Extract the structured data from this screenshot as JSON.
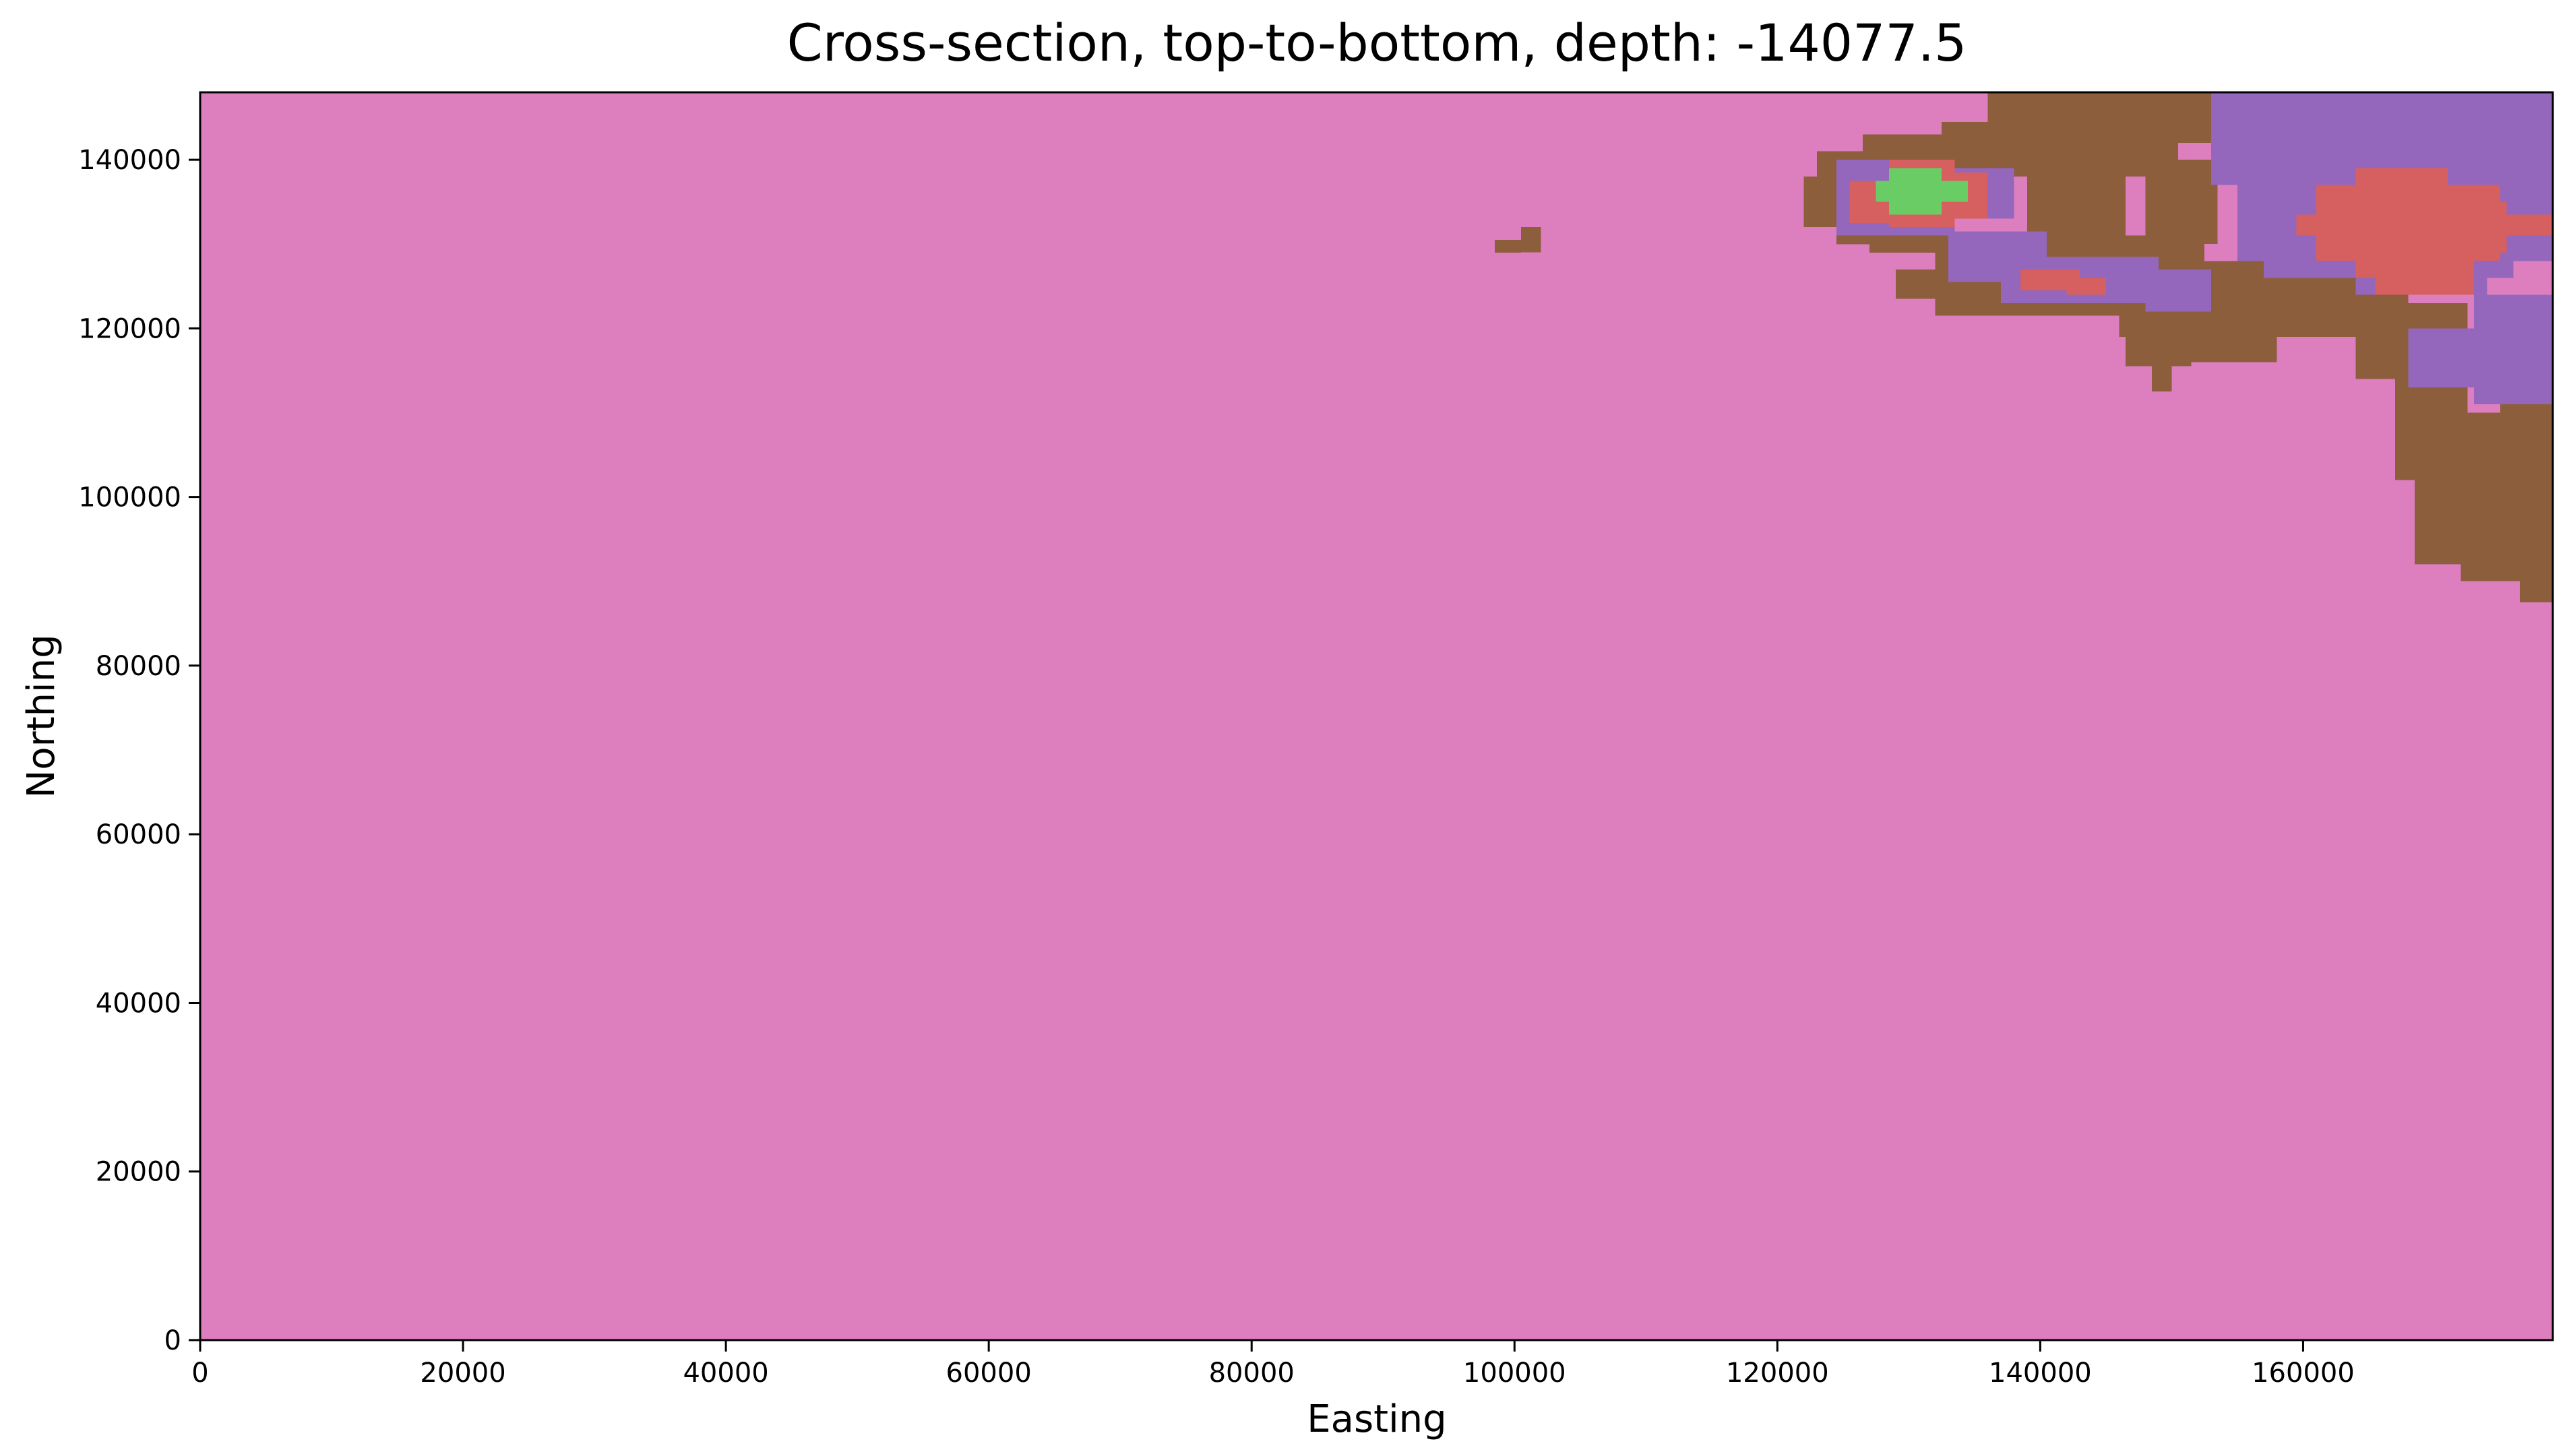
{
  "chart_data": {
    "type": "heatmap",
    "title": "Cross-section, top-to-bottom, depth: -14077.5",
    "xlabel": "Easting",
    "ylabel": "Northing",
    "xlim": [
      0,
      179000
    ],
    "ylim": [
      0,
      148000
    ],
    "grid": false,
    "legend": "none",
    "x_ticks": [
      0,
      20000,
      40000,
      60000,
      80000,
      100000,
      120000,
      140000,
      160000
    ],
    "y_ticks": [
      0,
      20000,
      40000,
      60000,
      80000,
      100000,
      120000,
      140000
    ],
    "x_tick_labels": [
      "0",
      "20000",
      "40000",
      "60000",
      "80000",
      "100000",
      "120000",
      "140000",
      "160000"
    ],
    "y_tick_labels": [
      "0",
      "20000",
      "40000",
      "60000",
      "80000",
      "100000",
      "120000",
      "140000"
    ],
    "background_color": "#dd7fbf",
    "units": [
      {
        "color": "#8c5e3c",
        "regions": [
          [
            98500,
            129000,
            100500,
            130500
          ],
          [
            100500,
            129000,
            102000,
            132000
          ],
          [
            122000,
            132000,
            124500,
            138000
          ],
          [
            124500,
            130000,
            127000,
            134000
          ],
          [
            123000,
            137000,
            126500,
            141000
          ],
          [
            126500,
            140000,
            136000,
            143000
          ],
          [
            134000,
            134000,
            136500,
            140000
          ],
          [
            127000,
            129000,
            139500,
            131500
          ],
          [
            132000,
            121500,
            138000,
            129000
          ],
          [
            129000,
            123500,
            132000,
            127000
          ],
          [
            132500,
            138000,
            139000,
            144500
          ],
          [
            136000,
            142000,
            153500,
            148000
          ],
          [
            139000,
            131000,
            146500,
            142500
          ],
          [
            144000,
            138000,
            150500,
            146000
          ],
          [
            148000,
            130000,
            153500,
            140000
          ],
          [
            137000,
            127000,
            152500,
            131000
          ],
          [
            136000,
            121500,
            148000,
            125000
          ],
          [
            146000,
            119000,
            153500,
            127000
          ],
          [
            146500,
            115500,
            151500,
            121000
          ],
          [
            148500,
            112500,
            150000,
            117000
          ],
          [
            150000,
            116000,
            158000,
            121000
          ],
          [
            152000,
            120000,
            166000,
            128000
          ],
          [
            158000,
            119000,
            164000,
            124000
          ],
          [
            164000,
            114000,
            168000,
            124000
          ],
          [
            167000,
            108000,
            172500,
            123000
          ],
          [
            170000,
            116000,
            175500,
            120000
          ],
          [
            175000,
            100000,
            179000,
            116000
          ],
          [
            167000,
            102000,
            170000,
            108000
          ],
          [
            168500,
            92000,
            175000,
            110000
          ],
          [
            172000,
            90000,
            177500,
            108000
          ],
          [
            176500,
            87500,
            179000,
            104000
          ]
        ]
      },
      {
        "color": "#9467bd",
        "regions": [
          [
            124500,
            131000,
            133500,
            140000
          ],
          [
            125000,
            133000,
            138000,
            139000
          ],
          [
            133000,
            125500,
            140500,
            131500
          ],
          [
            137000,
            123000,
            149000,
            128500
          ],
          [
            140000,
            123000,
            151500,
            126000
          ],
          [
            148000,
            122000,
            153000,
            127000
          ],
          [
            153000,
            137000,
            179000,
            148000
          ],
          [
            155000,
            128000,
            179000,
            144000
          ],
          [
            157000,
            126000,
            176000,
            130000
          ],
          [
            164000,
            124000,
            174000,
            128000
          ],
          [
            168000,
            113000,
            179000,
            120000
          ],
          [
            173000,
            111000,
            179000,
            124000
          ]
        ]
      },
      {
        "color": "#d65f5f",
        "regions": [
          [
            125500,
            132500,
            128500,
            137500
          ],
          [
            128500,
            132000,
            133500,
            140000
          ],
          [
            131000,
            133000,
            136000,
            138500
          ],
          [
            138500,
            124500,
            143000,
            127000
          ],
          [
            142000,
            124000,
            145000,
            126000
          ],
          [
            159500,
            131000,
            180000,
            133500
          ],
          [
            161000,
            128000,
            175000,
            137000
          ],
          [
            164000,
            126000,
            171000,
            139000
          ],
          [
            168500,
            129000,
            175500,
            135000
          ],
          [
            165500,
            124000,
            173000,
            128500
          ]
        ]
      },
      {
        "color": "#6acc64",
        "regions": [
          [
            127500,
            135000,
            134500,
            137500
          ],
          [
            128500,
            133500,
            132500,
            139000
          ]
        ]
      }
    ]
  }
}
